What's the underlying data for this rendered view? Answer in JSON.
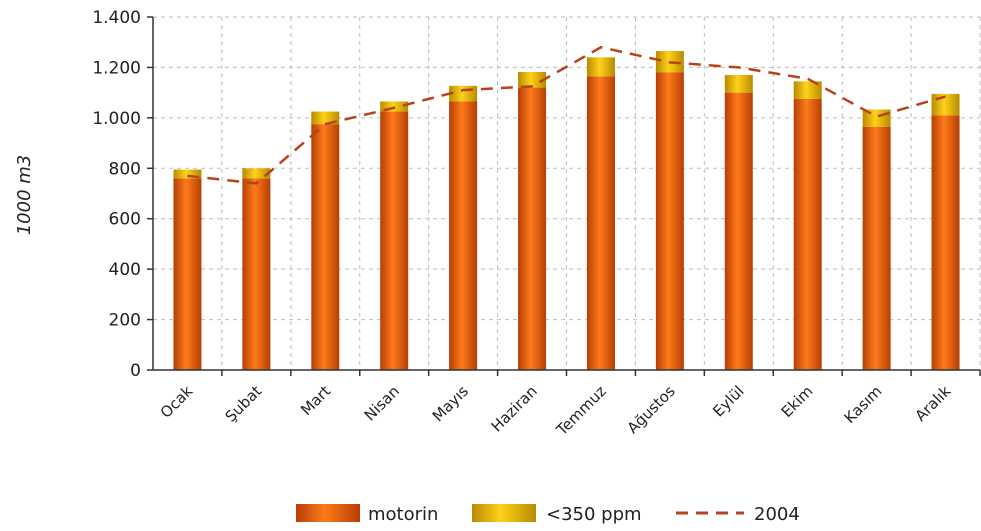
{
  "chart_data": {
    "type": "bar",
    "stacked": true,
    "title": "",
    "xlabel": "",
    "ylabel": "1000 m3",
    "ylim": [
      0,
      1400
    ],
    "yticks": [
      0,
      200,
      400,
      600,
      800,
      1000,
      1200,
      1400
    ],
    "ytick_labels": [
      "0",
      "200",
      "400",
      "600",
      "800",
      "1.000",
      "1.200",
      "1.400"
    ],
    "grid": true,
    "legend_position": "bottom",
    "categories": [
      "Ocak",
      "Şubat",
      "Mart",
      "Nisan",
      "Mayıs",
      "Haziran",
      "Temmuz",
      "Ağustos",
      "Eylül",
      "Ekim",
      "Kasım",
      "Aralık"
    ],
    "series": [
      {
        "name": "motorin",
        "type": "bar",
        "color": "#e8620c",
        "values": [
          760,
          760,
          975,
          1025,
          1065,
          1120,
          1165,
          1180,
          1100,
          1075,
          965,
          1010
        ]
      },
      {
        "name": "<350 ppm",
        "type": "bar",
        "color": "#f2c200",
        "values": [
          35,
          40,
          50,
          40,
          62,
          62,
          75,
          85,
          70,
          70,
          68,
          85
        ]
      },
      {
        "name": "2004",
        "type": "line",
        "style": "dashed",
        "color": "#b5441a",
        "values": [
          770,
          740,
          975,
          1040,
          1110,
          1125,
          1280,
          1220,
          1200,
          1155,
          1005,
          1085
        ]
      }
    ]
  }
}
